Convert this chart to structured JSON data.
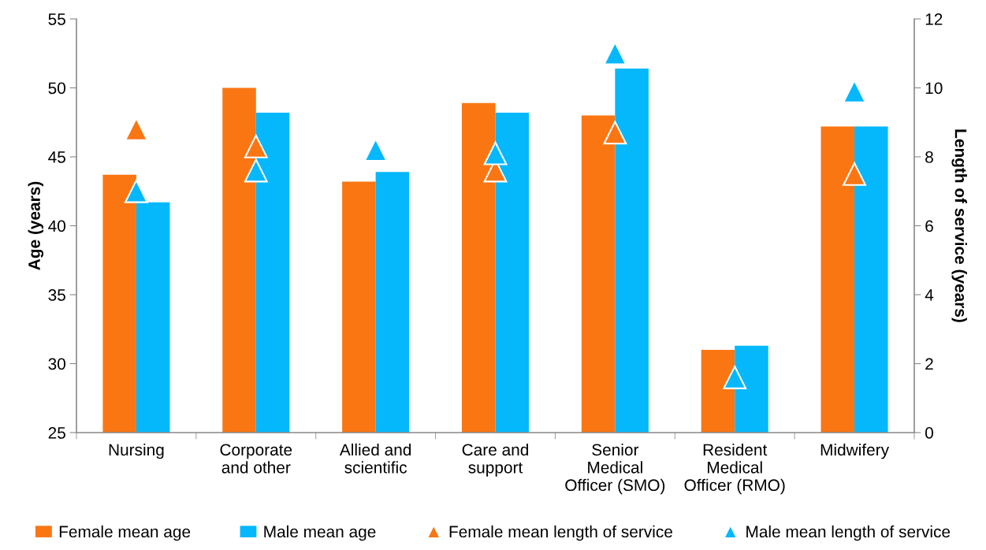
{
  "chart_data": {
    "type": "bar",
    "ylabel": "Age (years)",
    "y2label": "Length of service (years)",
    "categories": [
      "Nursing",
      "Corporate\nand other",
      "Allied and\nscientific",
      "Care and\nsupport",
      "Senior\nMedical\nOfficer (SMO)",
      "Resident\nMedical\nOfficer (RMO)",
      "Midwifery"
    ],
    "series": [
      {
        "name": "Female mean age",
        "color": "#fa7613",
        "values": [
          43.7,
          50.0,
          43.2,
          48.9,
          48.0,
          31.0,
          47.2
        ]
      },
      {
        "name": "Male mean age",
        "color": "#05b8fc",
        "values": [
          41.7,
          48.2,
          43.9,
          48.2,
          51.4,
          31.3,
          47.2
        ]
      },
      {
        "name": "Female mean length of service",
        "type": "scatter",
        "axis": "y2",
        "marker": "triangle",
        "color": "#fa7613",
        "values": [
          8.8,
          8.3,
          null,
          7.6,
          8.7,
          null,
          7.5
        ]
      },
      {
        "name": "Male mean length of service",
        "type": "scatter",
        "axis": "y2",
        "marker": "triangle",
        "color": "#05b8fc",
        "values": [
          7.0,
          7.6,
          8.2,
          8.1,
          11.0,
          1.6,
          9.9
        ]
      }
    ],
    "ylim": [
      25,
      55
    ],
    "yticks": [
      25,
      30,
      35,
      40,
      45,
      50,
      55
    ],
    "y2lim": [
      0,
      12
    ],
    "y2ticks": [
      0,
      2,
      4,
      6,
      8,
      10,
      12
    ],
    "grid": false,
    "legend": "bottom"
  }
}
